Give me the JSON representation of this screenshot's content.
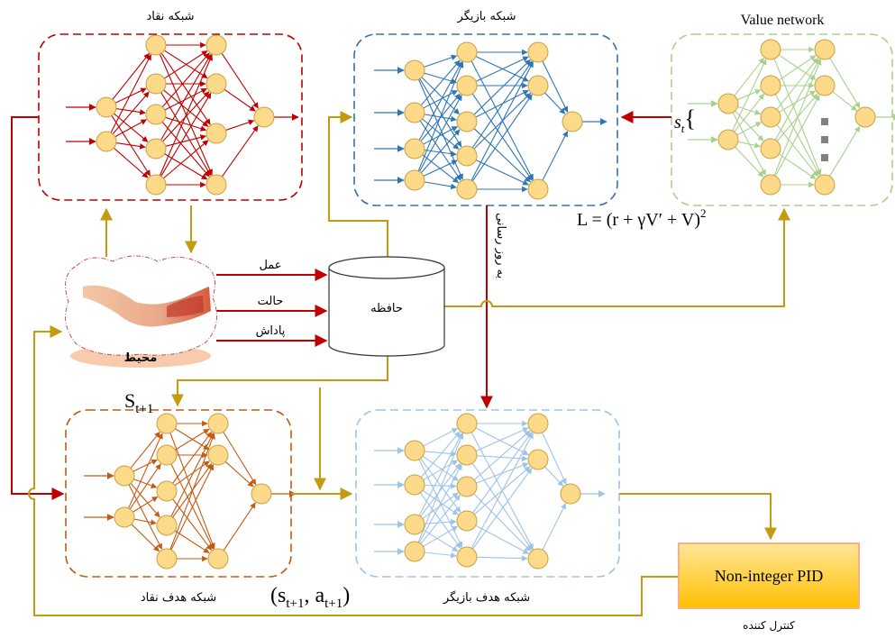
{
  "critic_network": {
    "title": "شبکه نقاد"
  },
  "actor_network": {
    "title": "شبکه بازیگر"
  },
  "value_network": {
    "title": "Value network",
    "input_label": {
      "base": "s",
      "sub": "t",
      "brace": "{"
    }
  },
  "loss": {
    "text": "L = (r + γV′ + V)",
    "exponent": "2"
  },
  "environment": {
    "label": "محیط"
  },
  "memory": {
    "label": "حافظه"
  },
  "signals": [
    "عمل",
    "حالت",
    "پاداش"
  ],
  "update_label": "به روز رسانی",
  "next_state": {
    "base": "S",
    "sub": "t+1"
  },
  "target_pair": {
    "open": "(s",
    "sub1": "t+1",
    "mid": ", a",
    "sub2": "t+1",
    "close": ")"
  },
  "target_critic_network": {
    "title": "شبکه هدف نقاد"
  },
  "target_actor_network": {
    "title": "شبکه هدف بازیگر"
  },
  "controller": {
    "name": "Non-integer PID",
    "label": "کنترل کننده"
  }
}
